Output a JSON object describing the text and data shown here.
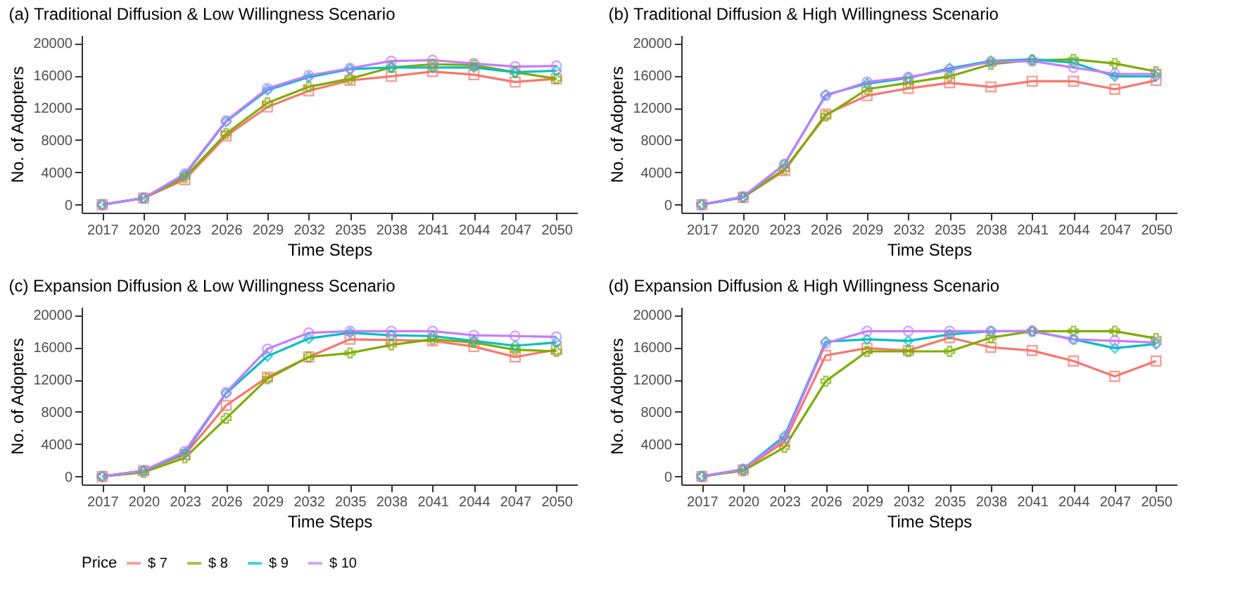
{
  "chart_data": [
    {
      "type": "line",
      "title": "(a) Traditional Diffusion & Low Willingness Scenario",
      "xlabel": "Time Steps",
      "ylabel": "No. of Adopters",
      "legend": "bottom",
      "grid": false,
      "ylim": [
        -1000,
        21000
      ],
      "yticks": [
        0,
        4000,
        8000,
        12000,
        16000,
        20000
      ],
      "categories": [
        "2017",
        "2020",
        "2023",
        "2026",
        "2029",
        "2032",
        "2035",
        "2038",
        "2041",
        "2044",
        "2047",
        "2050"
      ],
      "series": [
        {
          "name": "$ 7",
          "color": "#f8766d",
          "marker": "square",
          "values": [
            0,
            800,
            3100,
            8500,
            12100,
            14100,
            15400,
            15900,
            16500,
            16100,
            15200,
            15600
          ]
        },
        {
          "name": "$ 8",
          "color": "#7cae00",
          "marker": "cross",
          "values": [
            0,
            800,
            3400,
            8800,
            12600,
            14600,
            15600,
            17000,
            17400,
            17300,
            16400,
            15600
          ]
        },
        {
          "name": "$ 9",
          "color": "#00bfc4",
          "marker": "diamond",
          "values": [
            0,
            800,
            3700,
            10300,
            14200,
            15800,
            16800,
            17000,
            17000,
            17000,
            16400,
            16600
          ]
        },
        {
          "name": "$ 10",
          "color": "#c77cff",
          "marker": "circle",
          "values": [
            0,
            800,
            3800,
            10400,
            14400,
            16000,
            16900,
            17800,
            17900,
            17500,
            17100,
            17200
          ]
        }
      ]
    },
    {
      "type": "line",
      "title": "(b) Traditional Diffusion & High Willingness Scenario",
      "xlabel": "Time Steps",
      "ylabel": "No. of Adopters",
      "legend": "bottom",
      "grid": false,
      "ylim": [
        -1000,
        21000
      ],
      "yticks": [
        0,
        4000,
        8000,
        12000,
        16000,
        20000
      ],
      "categories": [
        "2017",
        "2020",
        "2023",
        "2026",
        "2029",
        "2032",
        "2035",
        "2038",
        "2041",
        "2044",
        "2047",
        "2050"
      ],
      "series": [
        {
          "name": "$ 7",
          "color": "#f8766d",
          "marker": "square",
          "values": [
            0,
            900,
            4200,
            11200,
            13500,
            14400,
            15100,
            14600,
            15300,
            15300,
            14300,
            15400
          ]
        },
        {
          "name": "$ 8",
          "color": "#7cae00",
          "marker": "cross",
          "values": [
            0,
            900,
            4400,
            11000,
            14300,
            15100,
            15900,
            17400,
            17900,
            18000,
            17500,
            16500
          ]
        },
        {
          "name": "$ 9",
          "color": "#00bfc4",
          "marker": "diamond",
          "values": [
            0,
            900,
            5000,
            13600,
            15000,
            15700,
            16900,
            17800,
            18000,
            17600,
            15900,
            15900
          ]
        },
        {
          "name": "$ 10",
          "color": "#c77cff",
          "marker": "circle",
          "values": [
            0,
            1000,
            5000,
            13500,
            15200,
            15800,
            16700,
            17700,
            17800,
            17000,
            16200,
            16200
          ]
        }
      ]
    },
    {
      "type": "line",
      "title": "(c) Expansion Diffusion & Low Willingness Scenario",
      "xlabel": "Time Steps",
      "ylabel": "No. of Adopters",
      "legend": "bottom",
      "grid": false,
      "ylim": [
        -1000,
        21000
      ],
      "yticks": [
        0,
        4000,
        8000,
        12000,
        16000,
        20000
      ],
      "categories": [
        "2017",
        "2020",
        "2023",
        "2026",
        "2029",
        "2032",
        "2035",
        "2038",
        "2041",
        "2044",
        "2047",
        "2050"
      ],
      "series": [
        {
          "name": "$ 7",
          "color": "#f8766d",
          "marker": "square",
          "values": [
            0,
            700,
            2700,
            8800,
            12300,
            14800,
            17000,
            16900,
            16800,
            16100,
            14800,
            15700
          ]
        },
        {
          "name": "$ 8",
          "color": "#7cae00",
          "marker": "cross",
          "values": [
            0,
            500,
            2300,
            7200,
            12100,
            14800,
            15300,
            16300,
            17000,
            16600,
            15700,
            15500
          ]
        },
        {
          "name": "$ 9",
          "color": "#00bfc4",
          "marker": "diamond",
          "values": [
            0,
            700,
            2900,
            10300,
            14900,
            17100,
            17800,
            17500,
            17400,
            16800,
            16200,
            16600
          ]
        },
        {
          "name": "$ 10",
          "color": "#c77cff",
          "marker": "circle",
          "values": [
            0,
            700,
            3100,
            10400,
            15800,
            17800,
            18000,
            18000,
            18000,
            17500,
            17400,
            17300
          ]
        }
      ]
    },
    {
      "type": "line",
      "title": "(d) Expansion Diffusion & High Willingness Scenario",
      "xlabel": "Time Steps",
      "ylabel": "No. of Adopters",
      "legend_title": "Price",
      "legend": "bottom",
      "grid": false,
      "ylim": [
        -1000,
        21000
      ],
      "yticks": [
        0,
        4000,
        8000,
        12000,
        16000,
        20000
      ],
      "categories": [
        "2017",
        "2020",
        "2023",
        "2026",
        "2029",
        "2032",
        "2035",
        "2038",
        "2041",
        "2044",
        "2047",
        "2050"
      ],
      "series": [
        {
          "name": "$ 7",
          "color": "#f8766d",
          "marker": "square",
          "values": [
            0,
            800,
            4300,
            15000,
            15900,
            15600,
            17200,
            16000,
            15600,
            14300,
            12400,
            14300
          ]
        },
        {
          "name": "$ 8",
          "color": "#7cae00",
          "marker": "cross",
          "values": [
            0,
            700,
            3600,
            11800,
            15500,
            15500,
            15500,
            17200,
            18000,
            18000,
            18000,
            17100
          ]
        },
        {
          "name": "$ 9",
          "color": "#00bfc4",
          "marker": "diamond",
          "values": [
            0,
            900,
            5000,
            16700,
            17000,
            16800,
            17600,
            18000,
            18000,
            17000,
            15900,
            16400
          ]
        },
        {
          "name": "$ 10",
          "color": "#c77cff",
          "marker": "circle",
          "values": [
            0,
            900,
            4700,
            16500,
            18000,
            18000,
            18000,
            18000,
            18000,
            17000,
            16800,
            16600
          ]
        }
      ]
    }
  ]
}
